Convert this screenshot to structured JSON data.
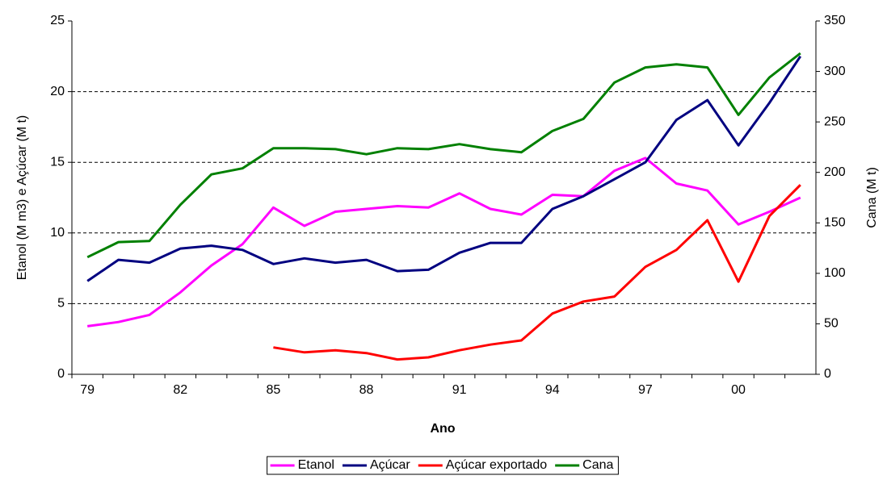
{
  "chart_data": {
    "type": "line",
    "x_label": "Ano",
    "y_label": "Etanol (M m3) e Açúcar (M t)",
    "y2_label": "Cana (M t)",
    "categories": [
      "79",
      null,
      null,
      "82",
      null,
      null,
      "85",
      null,
      null,
      "88",
      null,
      null,
      "91",
      null,
      null,
      "94",
      null,
      null,
      "97",
      null,
      null,
      "00",
      null,
      null
    ],
    "ylim": [
      0,
      25
    ],
    "yticks": [
      0,
      5,
      10,
      15,
      20,
      25
    ],
    "y2lim": [
      0,
      350
    ],
    "y2ticks": [
      0,
      50,
      100,
      150,
      200,
      250,
      300,
      350
    ],
    "grid": true,
    "legend": "bottom",
    "series": [
      {
        "name": "Etanol",
        "color": "#ff00ff",
        "values": [
          3.4,
          3.7,
          4.2,
          5.8,
          7.7,
          9.2,
          11.8,
          10.5,
          11.5,
          11.7,
          11.9,
          11.8,
          12.8,
          11.7,
          11.3,
          12.7,
          12.6,
          14.4,
          15.3,
          13.5,
          13.0,
          10.6,
          11.5,
          12.5
        ]
      },
      {
        "name": "Açúcar",
        "color": "#000080",
        "values": [
          6.6,
          8.1,
          7.9,
          8.9,
          9.1,
          8.8,
          7.8,
          8.2,
          7.9,
          8.1,
          7.3,
          7.4,
          8.6,
          9.3,
          9.3,
          11.7,
          12.6,
          13.8,
          15.0,
          18.0,
          19.4,
          16.2,
          19.2,
          22.5
        ]
      },
      {
        "name": "Açúcar exportado",
        "color": "#ff0000",
        "values": [
          null,
          null,
          null,
          null,
          null,
          null,
          1.9,
          1.55,
          1.7,
          1.5,
          1.05,
          1.2,
          1.7,
          2.1,
          2.4,
          4.3,
          5.15,
          5.5,
          7.6,
          8.8,
          10.9,
          6.55,
          11.2,
          13.4
        ]
      },
      {
        "name": "Cana",
        "color": "#008000",
        "axis": "y2",
        "values": [
          116,
          131,
          132,
          168,
          198,
          204,
          224,
          224,
          223,
          218,
          224,
          223,
          228,
          223,
          220,
          241,
          253,
          289,
          304,
          307,
          304,
          257,
          294,
          318
        ]
      }
    ]
  }
}
